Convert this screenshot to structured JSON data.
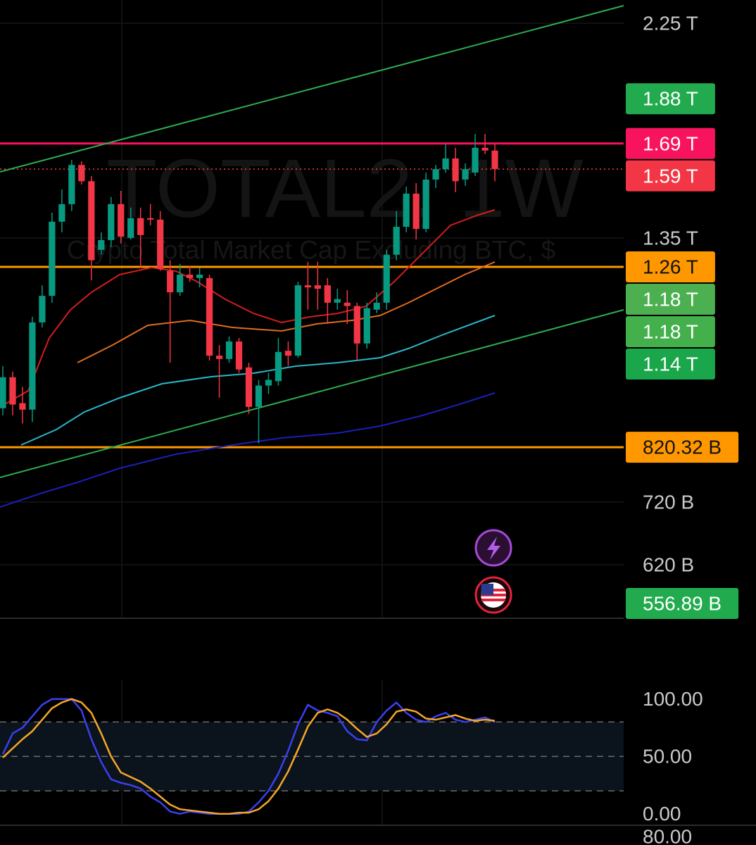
{
  "chart_data": [
    {
      "type": "candlestick",
      "title": "TOTAL2, 1W",
      "subtitle": "Crypto Total Market Cap Excluding BTC, $",
      "log_scale": true,
      "ylim": [
        546,
        2378
      ],
      "yticks": [
        {
          "value": 2250,
          "label": "2.25 T"
        },
        {
          "value": 1350,
          "label": "1.35 T"
        },
        {
          "value": 720,
          "label": "720 B"
        },
        {
          "value": 620,
          "label": "620 B"
        }
      ],
      "up_color": "#089981",
      "down_color": "#f23645",
      "series": {
        "open": [
          900,
          969,
          911,
          897,
          1104,
          1176,
          1403,
          1463,
          1606,
          1545,
          1312,
          1343,
          1463,
          1350,
          1415,
          1415,
          1410,
          1248,
          1186,
          1237,
          1227,
          1227,
          1020,
          1012,
          1055,
          992,
          903,
          950,
          960,
          1032,
          1020,
          1206,
          1206,
          1206,
          1157,
          1157,
          1148,
          1050,
          1138,
          1157,
          1297,
          1386,
          1500,
          1379,
          1551,
          1590,
          1631,
          1551,
          1577,
          1673,
          1662
        ],
        "high": [
          995,
          982,
          947,
          1119,
          1206,
          1434,
          1515,
          1625,
          1620,
          1564,
          1368,
          1488,
          1510,
          1451,
          1451,
          1463,
          1439,
          1280,
          1269,
          1262,
          1258,
          1237,
          1046,
          1068,
          1064,
          1003,
          963,
          979,
          1064,
          1055,
          1216,
          1275,
          1275,
          1227,
          1196,
          1192,
          1157,
          1157,
          1186,
          1312,
          1439,
          1525,
          1538,
          1577,
          1606,
          1687,
          1673,
          1612,
          1729,
          1729,
          1687
        ],
        "low": [
          885,
          885,
          868,
          871,
          1091,
          1157,
          1368,
          1439,
          1533,
          1220,
          1297,
          1321,
          1332,
          1345,
          1258,
          1391,
          1248,
          1003,
          1176,
          1216,
          1200,
          1008,
          923,
          1003,
          979,
          888,
          828,
          931,
          950,
          995,
          1015,
          1138,
          1138,
          1100,
          1138,
          1100,
          1008,
          1037,
          1129,
          1138,
          1280,
          1368,
          1345,
          1368,
          1520,
          1577,
          1505,
          1528,
          1564,
          1648,
          1545
        ],
        "close": [
          969,
          908,
          897,
          1104,
          1176,
          1403,
          1463,
          1606,
          1545,
          1280,
          1343,
          1463,
          1354,
          1415,
          1359,
          1410,
          1254,
          1186,
          1237,
          1227,
          1237,
          1020,
          1012,
          1055,
          987,
          903,
          950,
          963,
          1029,
          1020,
          1206,
          1200,
          1196,
          1157,
          1167,
          1148,
          1050,
          1142,
          1157,
          1297,
          1386,
          1500,
          1379,
          1551,
          1590,
          1631,
          1545,
          1590,
          1673,
          1662,
          1590
        ]
      },
      "price_tags": [
        {
          "value": 1880,
          "label": "1.88 T",
          "color": "#22ab4e",
          "text_color": "#ffffff"
        },
        {
          "value": 1690,
          "label": "1.69 T",
          "color": "#f7135e",
          "text_color": "#ffffff",
          "line": "solid"
        },
        {
          "value": 1590,
          "label": "1.59 T",
          "color": "#f23645",
          "text_color": "#ffffff",
          "line": "dotted"
        },
        {
          "value": 1260,
          "label": "1.26 T",
          "color": "#ff9800",
          "text_color": "#131313",
          "line": "solid"
        },
        {
          "value": 1180,
          "label": "1.18 T",
          "color": "#4caf50",
          "text_color": "#ffffff"
        },
        {
          "value": 1180,
          "label": "1.18 T",
          "color": "#43b04c",
          "text_color": "#ffffff"
        },
        {
          "value": 1140,
          "label": "1.14 T",
          "color": "#1aa64a",
          "text_color": "#ffffff"
        },
        {
          "value": 820.32,
          "label": "820.32 B",
          "color": "#ff9800",
          "text_color": "#131313",
          "line": "solid"
        },
        {
          "value": 556.89,
          "label": "556.89 B",
          "color": "#22ab4e",
          "text_color": "#ffffff"
        }
      ]
    },
    {
      "type": "line",
      "ylim": [
        -10,
        117
      ],
      "yticks": [
        {
          "value": 100,
          "label": "100.00"
        },
        {
          "value": 50,
          "label": "50.00"
        },
        {
          "value": 0,
          "label": "0.00"
        }
      ],
      "band": [
        20,
        80
      ],
      "lower_label": "80.00",
      "series": [
        {
          "color": "#3b3ff0",
          "values": [
            52,
            70,
            75,
            85,
            95,
            100,
            100,
            100,
            90,
            65,
            45,
            30,
            27,
            25,
            22,
            15,
            10,
            2,
            0,
            2,
            1,
            0,
            0,
            0,
            0,
            2,
            10,
            20,
            35,
            55,
            78,
            95,
            90,
            88,
            85,
            72,
            65,
            64,
            80,
            90,
            97,
            88,
            82,
            80,
            85,
            88,
            82,
            80,
            82,
            84,
            80
          ]
        },
        {
          "color": "#f5a62a",
          "values": [
            49,
            57,
            65,
            72,
            82,
            92,
            97,
            100,
            97,
            88,
            70,
            50,
            36,
            32,
            28,
            22,
            15,
            8,
            4,
            3,
            2,
            1,
            0,
            0,
            1,
            1,
            4,
            11,
            22,
            37,
            56,
            76,
            88,
            91,
            88,
            82,
            74,
            67,
            70,
            78,
            89,
            91,
            89,
            83,
            82,
            84,
            86,
            83,
            81,
            82,
            81
          ]
        }
      ]
    }
  ]
}
